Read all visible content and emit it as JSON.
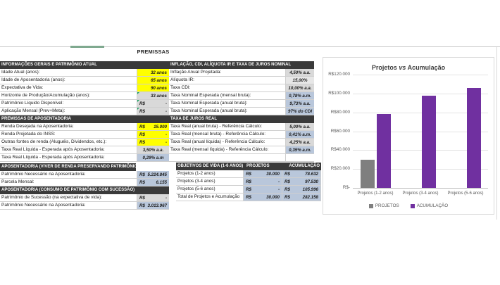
{
  "page": {
    "title": "PREMISSAS"
  },
  "colors": {
    "yellow": "#FFFF00",
    "gray": "#D9D9D9",
    "gray_light": "#E7E7E7",
    "blue": "#B9C7DB",
    "header_bg": "#3A3A3A",
    "header_fg": "#FFFFFF",
    "bar_projetos": "#7F7F7F",
    "bar_acumulacao": "#7030A0"
  },
  "left_table": {
    "sections": [
      {
        "header": "INFORMAÇÕES GERAIS E PATRIMÔNIO ATUAL",
        "rows": [
          {
            "label": "Idade Atual (anos):",
            "value": "32 anos",
            "bg": "yellow"
          },
          {
            "label": "Idade de Aposentadoria (anos):",
            "value": "65 anos",
            "bg": "yellow"
          },
          {
            "label": "Expectativa de Vida:",
            "value": "90 anos",
            "bg": "yellow"
          },
          {
            "label": "Horizonte de Produção/Acumulação (anos):",
            "value": "33 anos",
            "bg": "gray",
            "marker": true
          },
          {
            "label": "Patrimônio Líquido Disponível:",
            "prefix": "R$",
            "value": "-",
            "bg": "gray",
            "marker": true
          },
          {
            "label": "Aplicação Mensal (Prev+Meta):",
            "prefix": "R$",
            "value": "-",
            "bg": "gray",
            "marker": true
          }
        ]
      },
      {
        "header": "PREMISSAS DE APOSENTADORIA",
        "rows": [
          {
            "label": "Renda Desejada na Aposentadoria:",
            "prefix": "R$",
            "value": "15.000",
            "bg": "yellow"
          },
          {
            "label": "Renda Projetada do INSS:",
            "prefix": "R$",
            "value": "-",
            "bg": "yellow"
          },
          {
            "label": "Outras fontes de renda (Aluguéis, Dividendos, etc.):",
            "prefix": "R$",
            "value": "-",
            "bg": "yellow"
          },
          {
            "label": "Taxa Real Líquida - Esperada após Aposentadoria:",
            "value": "3,50% a.a.",
            "bg": "gray",
            "align": "center"
          },
          {
            "label": "Taxa Real Líquida - Esperada após Aposentadoria:",
            "value": "0,29% a.m",
            "bg": "blue",
            "align": "center"
          }
        ]
      },
      {
        "header": "APOSENTADORIA (VIVER DE RENDA PRESERVANDO PATRIMÔNIO)",
        "header_short": true,
        "gap_before": true,
        "rows": [
          {
            "label": "Patrimônio Necessário na Aposentadoria:",
            "prefix": "R$",
            "value": "5.224.845",
            "bg": "blue"
          },
          {
            "label": "Parcela Mensal:",
            "prefix": "R$",
            "value": "6.155",
            "bg": "blue"
          }
        ]
      },
      {
        "header": "APOSENTADORIA (CONSUMO DE PATRIMÔNIO COM SUCESSÃO)",
        "rows": [
          {
            "label": "Patrimônio de Sucessão (na expectativa de vida):",
            "prefix": "R$",
            "value": "-",
            "bg": "gray"
          },
          {
            "label": "Patrimônio Necessário na Aposentadoria:",
            "prefix": "R$",
            "value": "3.013.967",
            "bg": "blue"
          }
        ]
      }
    ]
  },
  "right_table": {
    "sections": [
      {
        "header": "INFLAÇÃO, CDI, ALÍQUOTA IR E TAXA DE JUROS NOMINAL",
        "rows": [
          {
            "label": "Inflação Anual Projetada:",
            "value": "4,50% a.a.",
            "bg": "gray",
            "align": "center"
          },
          {
            "label": "Alíquota IR:",
            "value": "15,00%",
            "bg": "gray_light",
            "align": "center"
          },
          {
            "label": "Taxa CDI:",
            "value": "10,00% a.a.",
            "bg": "gray",
            "align": "center"
          },
          {
            "label": "Taxa Nominal Esperada (mensal bruta):",
            "value": "0,78% a.m.",
            "bg": "blue",
            "align": "center"
          },
          {
            "label": "Taxa Nominal Esperada (anual bruta):",
            "value": "9,73% a.a.",
            "bg": "blue",
            "align": "center"
          },
          {
            "label": "Taxa Nominal Esperada (anual bruta):",
            "value": "97% do CDI",
            "bg": "blue",
            "align": "center"
          }
        ]
      },
      {
        "header": "TAXA DE JUROS REAL",
        "trailing_empty_row": true,
        "rows": [
          {
            "label": "Taxa Real (anual bruta) - Referência Cálculo:",
            "value": "5,00% a.a.",
            "bg": "gray",
            "align": "center"
          },
          {
            "label": "Taxa Real (mensal bruta) - Referência Cálculo:",
            "value": "0,41% a.m.",
            "bg": "blue",
            "align": "center"
          },
          {
            "label": "Taxa Real (anual líquida) - Referência Cálculo:",
            "value": "4,25% a.a.",
            "bg": "gray",
            "align": "center"
          },
          {
            "label": "Taxa Real (mensal líquida) - Referência Cálculo:",
            "value": "0,35% a.m.",
            "bg": "blue",
            "align": "center"
          }
        ]
      }
    ]
  },
  "objetivos_table": {
    "currency_prefix": "R$",
    "headers": {
      "label": "OBJETIVOS DE VIDA (1-6 ANOS)",
      "projetos": "PROJETOS",
      "acumulacao": "ACUMULAÇÃO"
    },
    "rows": [
      {
        "label": "Projetos (1-2 anos)",
        "projetos": "30.000",
        "acumulacao": "78.632"
      },
      {
        "label": "Projetos (3-4 anos)",
        "projetos": "-",
        "acumulacao": "97.530"
      },
      {
        "label": "Projetos (5-6 anos)",
        "projetos": "-",
        "acumulacao": "105.996"
      },
      {
        "label": "Total de Projetos e Acumulação",
        "projetos": "30.000",
        "acumulacao": "282.158"
      }
    ]
  },
  "chart_data": {
    "type": "bar",
    "title": "Projetos vs Acumulação",
    "categories": [
      "Projetos (1-2 anos)",
      "Projetos (3-4 anos)",
      "Projetos (5-6 anos)"
    ],
    "series": [
      {
        "name": "PROJETOS",
        "slug": "projetos",
        "color": "#7F7F7F",
        "values": [
          30000,
          0,
          0
        ]
      },
      {
        "name": "ACUMULAÇÃO",
        "slug": "acumulacao",
        "color": "#7030A0",
        "values": [
          78632,
          97530,
          105996
        ]
      }
    ],
    "ylim": [
      0,
      120000
    ],
    "ytick_step": 20000,
    "ytick_labels": [
      "R$-",
      "R$20.000",
      "R$40.000",
      "R$60.000",
      "R$80.000",
      "R$100.000",
      "R$120.000"
    ],
    "grid": true,
    "legend_position": "bottom"
  }
}
